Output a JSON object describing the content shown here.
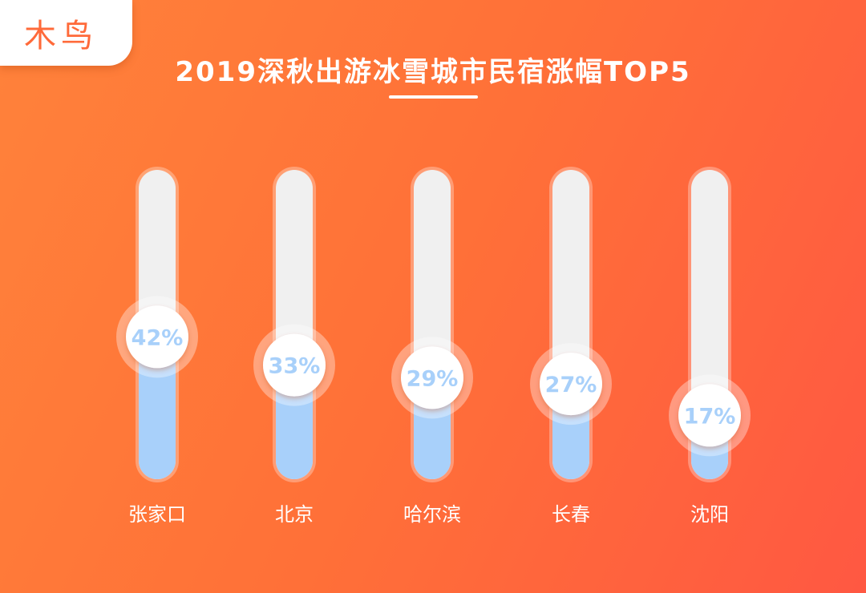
{
  "logo": {
    "text": "木鸟"
  },
  "chart_data": {
    "type": "bar",
    "title": "2019深秋出游冰雪城市民宿涨幅TOP5",
    "categories": [
      "张家口",
      "北京",
      "哈尔滨",
      "长春",
      "沈阳"
    ],
    "values": [
      42,
      33,
      29,
      27,
      17
    ],
    "value_labels": [
      "42%",
      "33%",
      "29%",
      "27%",
      "17%"
    ],
    "unit": "%",
    "colors": {
      "fill": "#a8d0fa",
      "track": "#f0f0f0",
      "label": "#a8d0fa",
      "background": "#ff7338"
    }
  }
}
